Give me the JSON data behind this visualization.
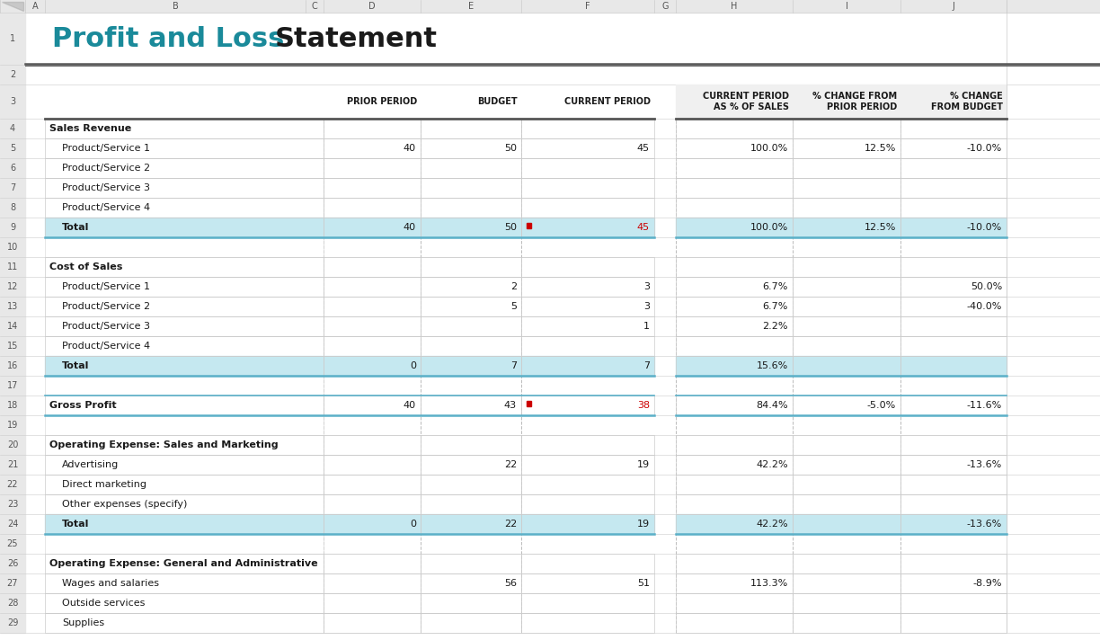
{
  "title_profit": "Profit and Loss",
  "title_statement": " Statement",
  "spreadsheet_cols": [
    "A",
    "B",
    "C",
    "D",
    "E",
    "F",
    "G",
    "H",
    "I",
    "J"
  ],
  "rows": [
    {
      "row": 4,
      "label": "Sales Revenue",
      "bold": true,
      "indent": 0,
      "bg": "white",
      "prior": "",
      "budget": "",
      "current": "",
      "pct_sales": "",
      "chg_prior": "",
      "chg_budget": ""
    },
    {
      "row": 5,
      "label": "Product/Service 1",
      "bold": false,
      "indent": 1,
      "bg": "white",
      "prior": "40",
      "budget": "50",
      "current": "45",
      "pct_sales": "100.0%",
      "chg_prior": "12.5%",
      "chg_budget": "-10.0%"
    },
    {
      "row": 6,
      "label": "Product/Service 2",
      "bold": false,
      "indent": 1,
      "bg": "white",
      "prior": "",
      "budget": "",
      "current": "",
      "pct_sales": "",
      "chg_prior": "",
      "chg_budget": ""
    },
    {
      "row": 7,
      "label": "Product/Service 3",
      "bold": false,
      "indent": 1,
      "bg": "white",
      "prior": "",
      "budget": "",
      "current": "",
      "pct_sales": "",
      "chg_prior": "",
      "chg_budget": ""
    },
    {
      "row": 8,
      "label": "Product/Service 4",
      "bold": false,
      "indent": 1,
      "bg": "white",
      "prior": "",
      "budget": "",
      "current": "",
      "pct_sales": "",
      "chg_prior": "",
      "chg_budget": ""
    },
    {
      "row": 9,
      "label": "Total",
      "bold": true,
      "indent": 1,
      "bg": "lightblue",
      "prior": "40",
      "budget": "50",
      "current": "45",
      "pct_sales": "100.0%",
      "chg_prior": "12.5%",
      "chg_budget": "-10.0%",
      "current_red": true,
      "budget_flag": true
    },
    {
      "row": 11,
      "label": "Cost of Sales",
      "bold": true,
      "indent": 0,
      "bg": "white",
      "prior": "",
      "budget": "",
      "current": "",
      "pct_sales": "",
      "chg_prior": "",
      "chg_budget": ""
    },
    {
      "row": 12,
      "label": "Product/Service 1",
      "bold": false,
      "indent": 1,
      "bg": "white",
      "prior": "",
      "budget": "2",
      "current": "3",
      "pct_sales": "6.7%",
      "chg_prior": "",
      "chg_budget": "50.0%"
    },
    {
      "row": 13,
      "label": "Product/Service 2",
      "bold": false,
      "indent": 1,
      "bg": "white",
      "prior": "",
      "budget": "5",
      "current": "3",
      "pct_sales": "6.7%",
      "chg_prior": "",
      "chg_budget": "-40.0%"
    },
    {
      "row": 14,
      "label": "Product/Service 3",
      "bold": false,
      "indent": 1,
      "bg": "white",
      "prior": "",
      "budget": "",
      "current": "1",
      "pct_sales": "2.2%",
      "chg_prior": "",
      "chg_budget": ""
    },
    {
      "row": 15,
      "label": "Product/Service 4",
      "bold": false,
      "indent": 1,
      "bg": "white",
      "prior": "",
      "budget": "",
      "current": "",
      "pct_sales": "",
      "chg_prior": "",
      "chg_budget": ""
    },
    {
      "row": 16,
      "label": "Total",
      "bold": true,
      "indent": 1,
      "bg": "lightblue",
      "prior": "0",
      "budget": "7",
      "current": "7",
      "pct_sales": "15.6%",
      "chg_prior": "",
      "chg_budget": ""
    },
    {
      "row": 18,
      "label": "Gross Profit",
      "bold": true,
      "indent": 0,
      "bg": "white",
      "prior": "40",
      "budget": "43",
      "current": "38",
      "pct_sales": "84.4%",
      "chg_prior": "-5.0%",
      "chg_budget": "-11.6%",
      "current_red": true,
      "budget_flag": true
    },
    {
      "row": 20,
      "label": "Operating Expense: Sales and Marketing",
      "bold": true,
      "indent": 0,
      "bg": "white",
      "prior": "",
      "budget": "",
      "current": "",
      "pct_sales": "",
      "chg_prior": "",
      "chg_budget": ""
    },
    {
      "row": 21,
      "label": "Advertising",
      "bold": false,
      "indent": 1,
      "bg": "white",
      "prior": "",
      "budget": "22",
      "current": "19",
      "pct_sales": "42.2%",
      "chg_prior": "",
      "chg_budget": "-13.6%"
    },
    {
      "row": 22,
      "label": "Direct marketing",
      "bold": false,
      "indent": 1,
      "bg": "white",
      "prior": "",
      "budget": "",
      "current": "",
      "pct_sales": "",
      "chg_prior": "",
      "chg_budget": ""
    },
    {
      "row": 23,
      "label": "Other expenses (specify)",
      "bold": false,
      "indent": 1,
      "bg": "white",
      "prior": "",
      "budget": "",
      "current": "",
      "pct_sales": "",
      "chg_prior": "",
      "chg_budget": ""
    },
    {
      "row": 24,
      "label": "Total",
      "bold": true,
      "indent": 1,
      "bg": "lightblue",
      "prior": "0",
      "budget": "22",
      "current": "19",
      "pct_sales": "42.2%",
      "chg_prior": "",
      "chg_budget": "-13.6%"
    },
    {
      "row": 26,
      "label": "Operating Expense: General and Administrative",
      "bold": true,
      "indent": 0,
      "bg": "white",
      "prior": "",
      "budget": "",
      "current": "",
      "pct_sales": "",
      "chg_prior": "",
      "chg_budget": ""
    },
    {
      "row": 27,
      "label": "Wages and salaries",
      "bold": false,
      "indent": 1,
      "bg": "white",
      "prior": "",
      "budget": "56",
      "current": "51",
      "pct_sales": "113.3%",
      "chg_prior": "",
      "chg_budget": "-8.9%"
    },
    {
      "row": 28,
      "label": "Outside services",
      "bold": false,
      "indent": 1,
      "bg": "white",
      "prior": "",
      "budget": "",
      "current": "",
      "pct_sales": "",
      "chg_prior": "",
      "chg_budget": ""
    },
    {
      "row": 29,
      "label": "Supplies",
      "bold": false,
      "indent": 1,
      "bg": "white",
      "prior": "",
      "budget": "",
      "current": "",
      "pct_sales": "",
      "chg_prior": "",
      "chg_budget": ""
    }
  ],
  "bg_color": "#ffffff",
  "light_blue": "#c5e8f0",
  "title_color_pl": "#1a8a9a",
  "title_color_stmt": "#1a1a1a",
  "row_num_bg": "#e8e8e8",
  "col_letter_bg": "#e8e8e8",
  "dashed_color": "#aaaaaa",
  "header_line_color": "#555555",
  "blue_line_color": "#5bb0c8"
}
